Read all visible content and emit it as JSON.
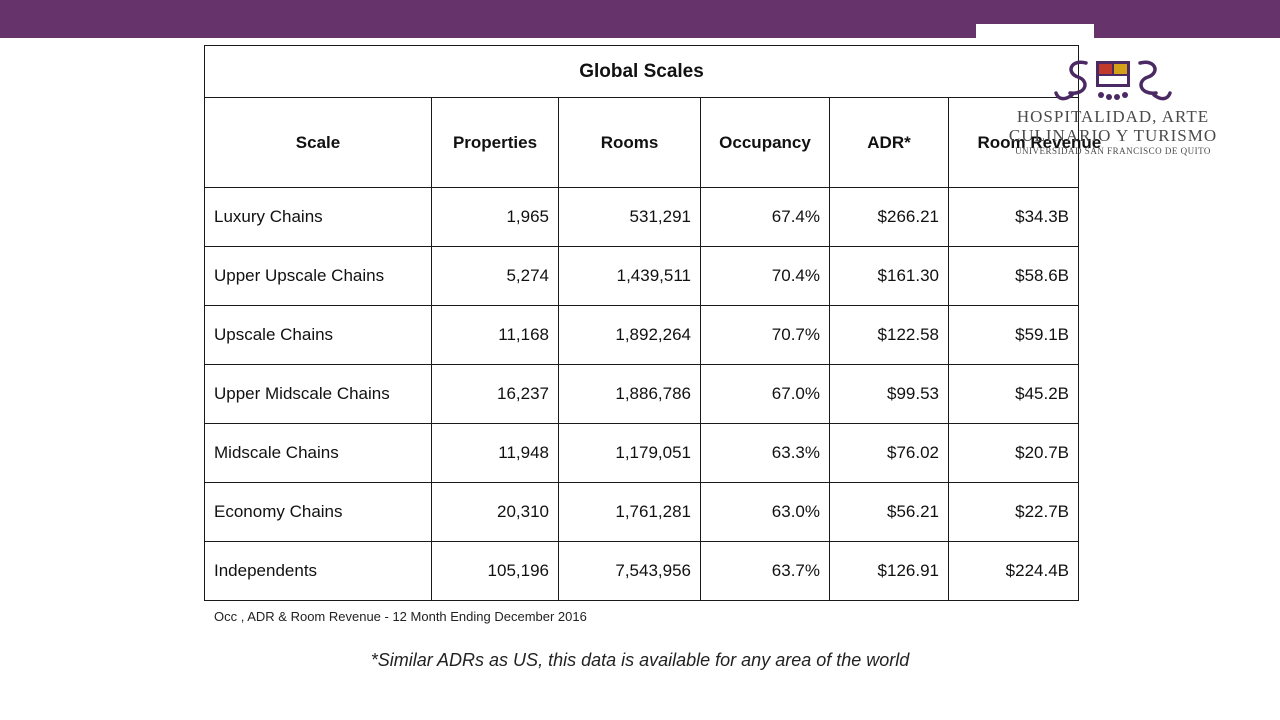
{
  "colors": {
    "topbar": "#66336a",
    "logo_purple": "#4b2a63",
    "logo_red": "#c0392b"
  },
  "table": {
    "title": "Global Scales",
    "columns": [
      "Scale",
      "Properties",
      "Rooms",
      "Occupancy",
      "ADR*",
      "Room Revenue"
    ],
    "rows": [
      [
        "Luxury Chains",
        "1,965",
        "531,291",
        "67.4%",
        "$266.21",
        "$34.3B"
      ],
      [
        "Upper Upscale Chains",
        "5,274",
        "1,439,511",
        "70.4%",
        "$161.30",
        "$58.6B"
      ],
      [
        "Upscale Chains",
        "11,168",
        "1,892,264",
        "70.7%",
        "$122.58",
        "$59.1B"
      ],
      [
        "Upper Midscale Chains",
        "16,237",
        "1,886,786",
        "67.0%",
        "$99.53",
        "$45.2B"
      ],
      [
        "Midscale Chains",
        "11,948",
        "1,179,051",
        "63.3%",
        "$76.02",
        "$20.7B"
      ],
      [
        "Economy Chains",
        "20,310",
        "1,761,281",
        "63.0%",
        "$56.21",
        "$22.7B"
      ],
      [
        "Independents",
        "105,196",
        "7,543,956",
        "63.7%",
        "$126.91",
        "$224.4B"
      ]
    ]
  },
  "footnote": "Occ , ADR & Room Revenue - 12 Month Ending December 2016",
  "note": "*Similar ADRs as US,  this data is available for any area of the world",
  "logo": {
    "icon": "dragon-crest-icon",
    "line1": "HOSPITALIDAD, ARTE",
    "line2": "CULINARIO Y TURISMO",
    "line3": "UNIVERSIDAD SAN FRANCISCO DE QUITO"
  }
}
